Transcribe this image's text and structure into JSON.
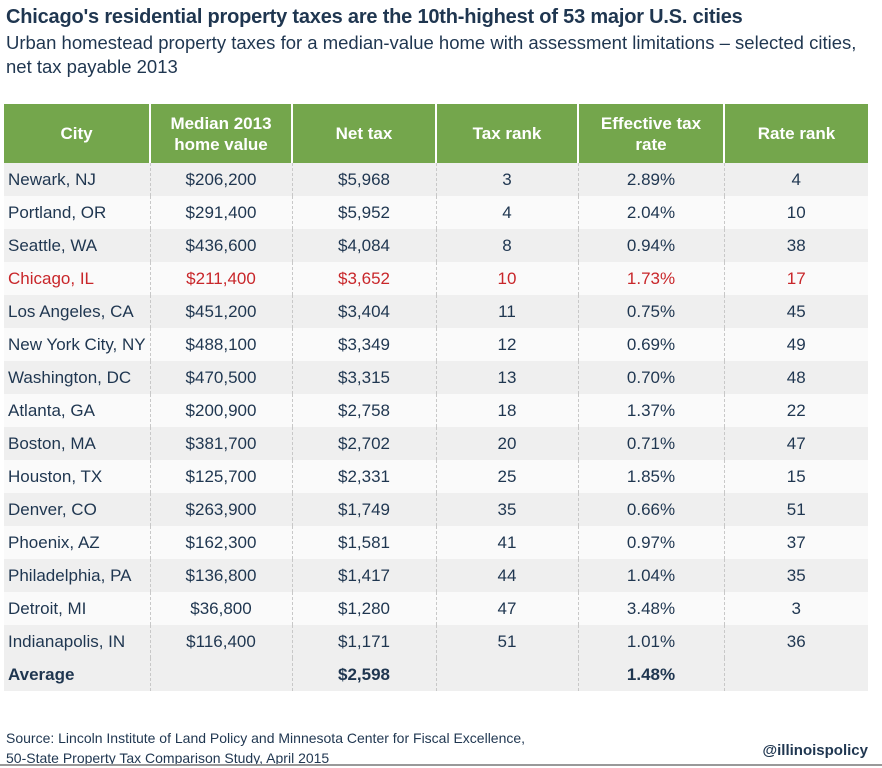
{
  "title": "Chicago's residential property taxes are the 10th-highest of 53 major U.S. cities",
  "subtitle": "Urban homestead property taxes for a median-value home with assessment limitations – selected cities, net tax payable 2013",
  "colors": {
    "header": "#74a64c",
    "text": "#1f3650",
    "highlight": "#c8262a"
  },
  "chart_data": {
    "type": "table",
    "columns": [
      "City",
      "Median 2013 home value",
      "Net tax",
      "Tax rank",
      "Effective tax rate",
      "Rate rank"
    ],
    "rows": [
      [
        "Newark, NJ",
        "$206,200",
        "$5,968",
        "3",
        "2.89%",
        "4"
      ],
      [
        "Portland, OR",
        "$291,400",
        "$5,952",
        "4",
        "2.04%",
        "10"
      ],
      [
        "Seattle, WA",
        "$436,600",
        "$4,084",
        "8",
        "0.94%",
        "38"
      ],
      [
        "Chicago, IL",
        "$211,400",
        "$3,652",
        "10",
        "1.73%",
        "17"
      ],
      [
        "Los Angeles, CA",
        "$451,200",
        "$3,404",
        "11",
        "0.75%",
        "45"
      ],
      [
        "New York City, NY",
        "$488,100",
        "$3,349",
        "12",
        "0.69%",
        "49"
      ],
      [
        "Washington, DC",
        "$470,500",
        "$3,315",
        "13",
        "0.70%",
        "48"
      ],
      [
        "Atlanta, GA",
        "$200,900",
        "$2,758",
        "18",
        "1.37%",
        "22"
      ],
      [
        "Boston, MA",
        "$381,700",
        "$2,702",
        "20",
        "0.71%",
        "47"
      ],
      [
        "Houston, TX",
        "$125,700",
        "$2,331",
        "25",
        "1.85%",
        "15"
      ],
      [
        "Denver, CO",
        "$263,900",
        "$1,749",
        "35",
        "0.66%",
        "51"
      ],
      [
        "Phoenix, AZ",
        "$162,300",
        "$1,581",
        "41",
        "0.97%",
        "37"
      ],
      [
        "Philadelphia, PA",
        "$136,800",
        "$1,417",
        "44",
        "1.04%",
        "35"
      ],
      [
        "Detroit, MI",
        "$36,800",
        "$1,280",
        "47",
        "3.48%",
        "3"
      ],
      [
        "Indianapolis, IN",
        "$116,400",
        "$1,171",
        "51",
        "1.01%",
        "36"
      ]
    ],
    "highlight_row": "Chicago, IL",
    "average": [
      "Average",
      "",
      "$2,598",
      "",
      "1.48%",
      ""
    ]
  },
  "source": [
    "Source: Lincoln Institute of Land Policy and Minnesota Center for Fiscal Excellence,",
    "50-State Property Tax Comparison Study, April 2015"
  ],
  "handle": "@illinoispolicy"
}
